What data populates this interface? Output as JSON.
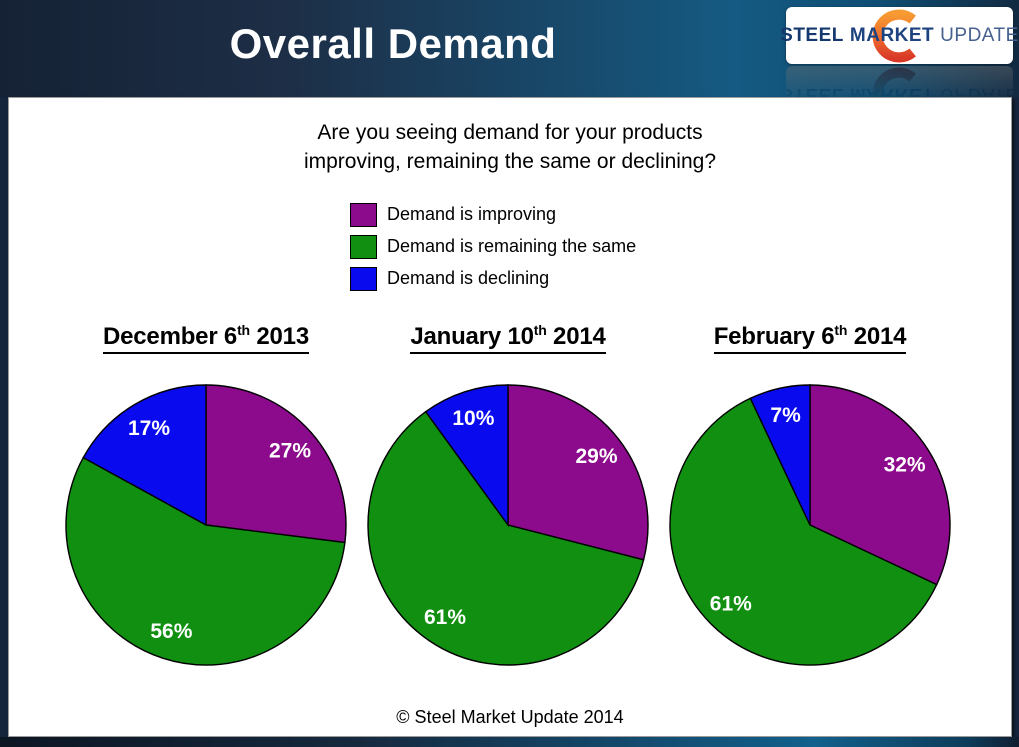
{
  "header": {
    "title": "Overall Demand",
    "logo": {
      "steel": "STEEL",
      "market": "MARKET",
      "update": "UPDATE"
    }
  },
  "question": {
    "line1": "Are you seeing demand for your products",
    "line2": "improving, remaining the same or declining?"
  },
  "legend": {
    "items": [
      {
        "label": "Demand is improving",
        "color": "#8C0A8C"
      },
      {
        "label": "Demand is remaining the same",
        "color": "#118F11"
      },
      {
        "label": "Demand is declining",
        "color": "#0A0AEF"
      }
    ]
  },
  "chart_data": [
    {
      "type": "pie",
      "title": {
        "prefix": "December 6",
        "sup": "th",
        "suffix": " 2013"
      },
      "categories": [
        "Demand is improving",
        "Demand is remaining the same",
        "Demand is declining"
      ],
      "values": [
        27,
        56,
        17
      ],
      "labels": [
        "27%",
        "56%",
        "17%"
      ],
      "colors": [
        "#8C0A8C",
        "#118F11",
        "#0A0AEF"
      ],
      "start_angle": "12 o'clock",
      "direction": "clockwise",
      "label_distance": 0.8
    },
    {
      "type": "pie",
      "title": {
        "prefix": "January 10",
        "sup": "th",
        "suffix": " 2014"
      },
      "categories": [
        "Demand is improving",
        "Demand is remaining the same",
        "Demand is declining"
      ],
      "values": [
        29,
        61,
        10
      ],
      "labels": [
        "29%",
        "61%",
        "10%"
      ],
      "colors": [
        "#8C0A8C",
        "#118F11",
        "#0A0AEF"
      ],
      "start_angle": "12 o'clock",
      "direction": "clockwise",
      "label_distance": 0.8
    },
    {
      "type": "pie",
      "title": {
        "prefix": "February 6",
        "sup": "th",
        "suffix": " 2014"
      },
      "categories": [
        "Demand is improving",
        "Demand is remaining the same",
        "Demand is declining"
      ],
      "values": [
        32,
        61,
        7
      ],
      "labels": [
        "32%",
        "61%",
        "7%"
      ],
      "colors": [
        "#8C0A8C",
        "#118F11",
        "#0A0AEF"
      ],
      "start_angle": "12 o'clock",
      "direction": "clockwise",
      "label_distance": 0.8
    }
  ],
  "footer": {
    "copyright": "© Steel Market Update 2014"
  },
  "colors": {
    "slice_border": "#000000",
    "percent_label": "#FFFFFF",
    "header_dark": "#152235",
    "header_light": "#155A82"
  }
}
